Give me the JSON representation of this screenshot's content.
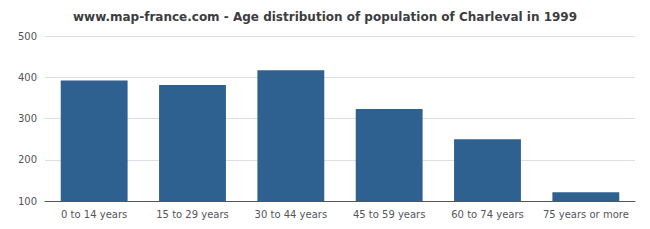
{
  "chart_data": {
    "type": "bar",
    "title": "www.map-france.com - Age distribution of population of Charleval in 1999",
    "categories": [
      "0 to 14 years",
      "15 to 29 years",
      "30 to 44 years",
      "45 to 59 years",
      "60 to 74 years",
      "75 years or more"
    ],
    "values": [
      392,
      381,
      417,
      323,
      250,
      121
    ],
    "color": "#2e6090",
    "ylim": [
      100,
      500
    ],
    "yticks": [
      100,
      200,
      300,
      400,
      500
    ],
    "grid": true
  }
}
